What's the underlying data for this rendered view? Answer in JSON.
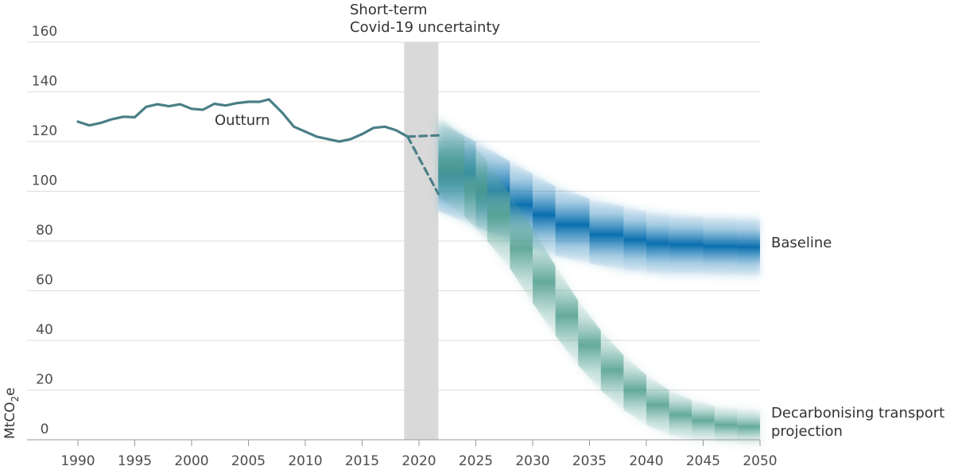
{
  "chart_data": {
    "type": "line",
    "title": "",
    "xlabel": "",
    "ylabel_main": "MtCO",
    "ylabel_sub": "2",
    "ylabel_suffix": "e",
    "xlim": [
      1990,
      2050
    ],
    "ylim": [
      0,
      160
    ],
    "x_ticks": [
      1990,
      1995,
      2000,
      2005,
      2010,
      2015,
      2020,
      2025,
      2030,
      2035,
      2040,
      2045,
      2050
    ],
    "y_ticks": [
      0,
      20,
      40,
      60,
      80,
      100,
      120,
      140,
      160
    ],
    "grid": "horizontal",
    "colors": {
      "outturn": "#4a7f86",
      "baseline": "#1a7db8",
      "decarbonising": "#5fa99a",
      "covid_band": "#d9d9d9",
      "grid": "#dddddd",
      "axis": "#999999"
    },
    "annotations": {
      "covid_band_line1": "Short-term",
      "covid_band_line2": "Covid-19 uncertainty",
      "covid_band_range": [
        2018.7,
        2021.7
      ],
      "outturn_label": "Outturn",
      "baseline_label": "Baseline",
      "decarb_label_line1": "Decarbonising transport",
      "decarb_label_line2": "projection"
    },
    "series": [
      {
        "name": "Outturn",
        "style": "solid",
        "x": [
          1990,
          1991,
          1992,
          1993,
          1994,
          1995,
          1996,
          1997,
          1998,
          1999,
          2000,
          2001,
          2002,
          2003,
          2004,
          2005,
          2006,
          2006.8,
          2008,
          2009,
          2010,
          2011,
          2012,
          2013,
          2014,
          2015,
          2016,
          2017,
          2018,
          2019
        ],
        "y": [
          128,
          126.5,
          127.5,
          129,
          130,
          129.8,
          134,
          135,
          134.2,
          135,
          133.2,
          132.8,
          135.2,
          134.5,
          135.5,
          136,
          136,
          137,
          131.5,
          126,
          124,
          122,
          121,
          120,
          121,
          123,
          125.5,
          126,
          124.5,
          122
        ]
      },
      {
        "name": "",
        "style": "dashed",
        "x": [
          2019,
          2021.7
        ],
        "y": [
          122,
          122.5
        ]
      },
      {
        "name": "",
        "style": "dashed",
        "x": [
          2019,
          2021.7
        ],
        "y": [
          122,
          99
        ]
      },
      {
        "name": "Baseline",
        "style": "band",
        "x": [
          2021.7,
          2025,
          2028,
          2030,
          2032,
          2035,
          2038,
          2040,
          2042,
          2045,
          2048,
          2050
        ],
        "y": [
          110,
          103,
          96,
          92,
          88,
          84,
          81,
          79.5,
          78.5,
          78,
          77.7,
          77.5
        ],
        "spread": [
          18,
          17,
          16,
          15,
          14,
          13,
          13,
          12.5,
          12.5,
          12,
          12,
          12
        ]
      },
      {
        "name": "Decarbonising transport projection",
        "style": "band",
        "x": [
          2021.7,
          2024,
          2026,
          2028,
          2030,
          2032,
          2034,
          2036,
          2038,
          2040,
          2042,
          2044,
          2046,
          2048,
          2050
        ],
        "y": [
          114,
          106,
          96,
          84,
          70,
          56,
          43,
          32,
          23,
          16,
          11,
          8,
          6.5,
          5.5,
          5
        ],
        "spread": [
          16,
          16,
          16,
          15,
          15,
          14,
          13,
          12,
          11,
          10,
          9,
          8,
          7,
          7,
          7
        ]
      }
    ]
  }
}
